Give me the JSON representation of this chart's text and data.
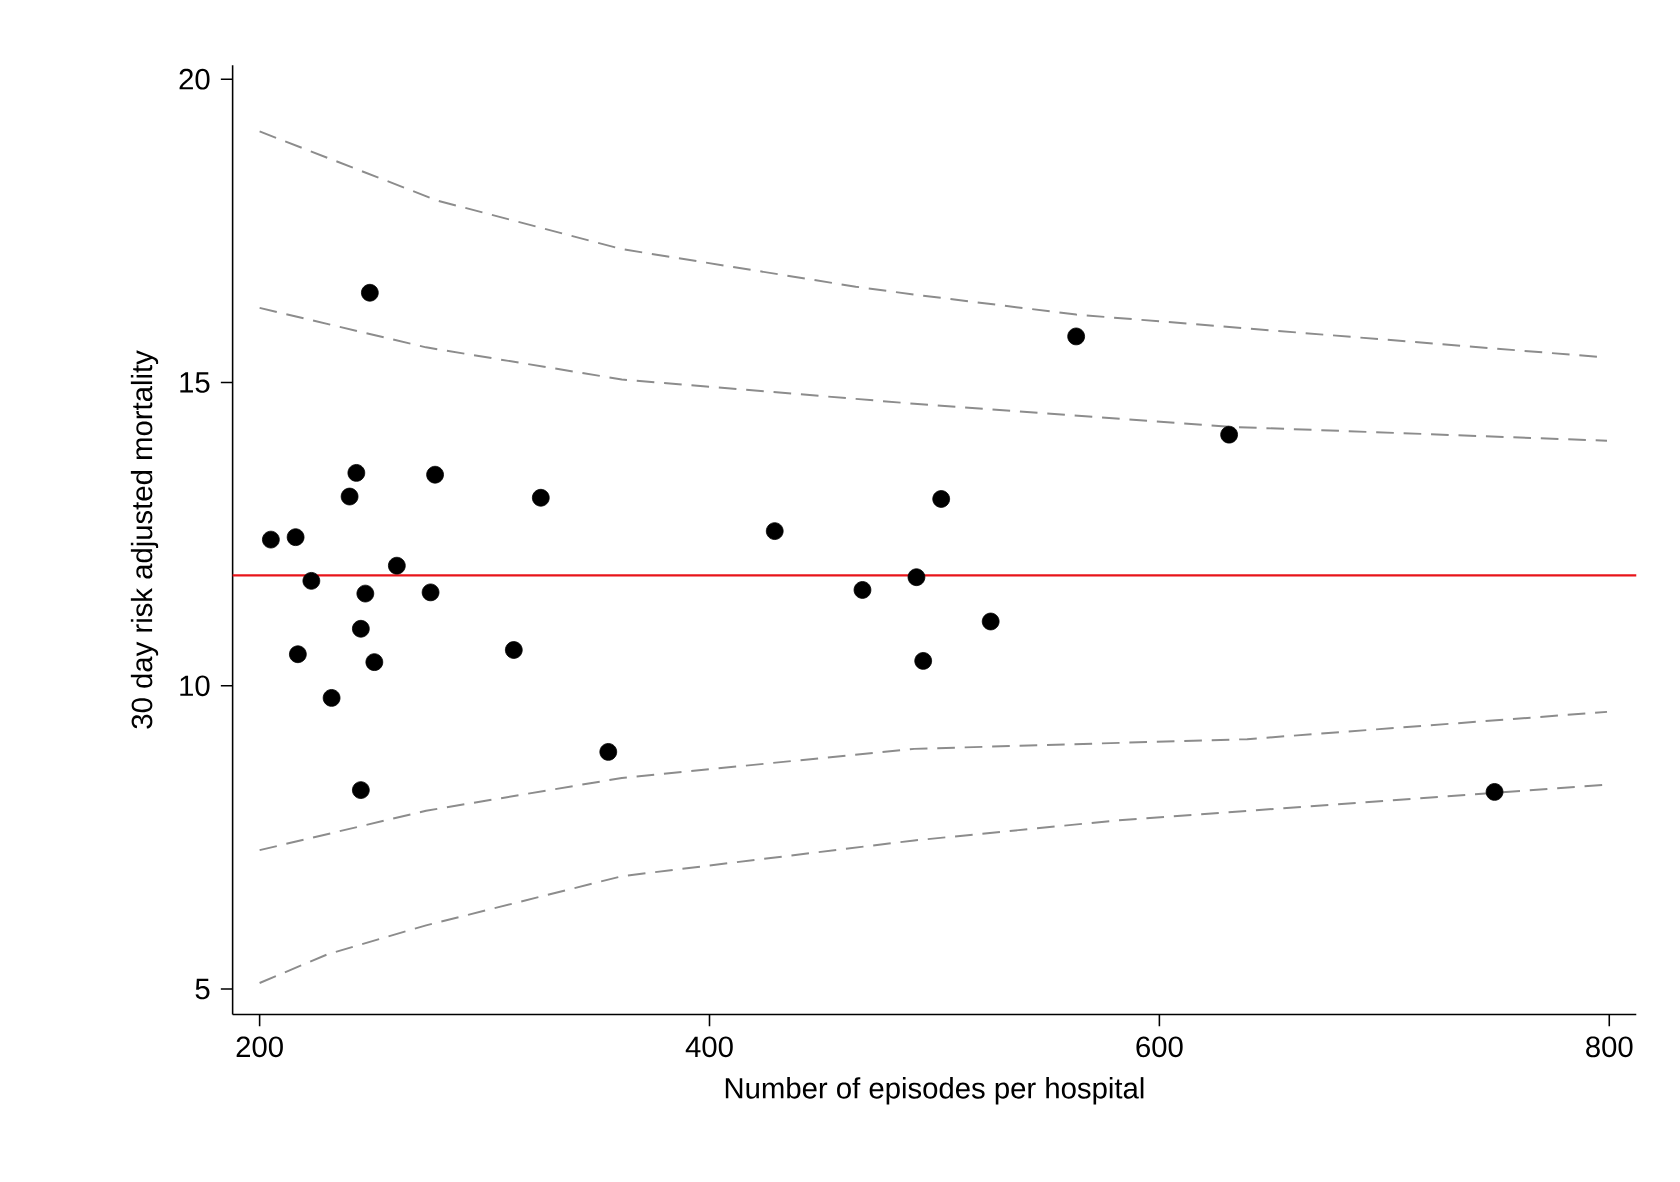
{
  "chart_data": {
    "type": "scatter",
    "xlabel": "Number of episodes per hospital",
    "ylabel": "30 day risk adjusted mortality",
    "xlim": [
      188,
      812
    ],
    "ylim": [
      4.58,
      20.23
    ],
    "xticks": [
      200,
      400,
      600,
      800
    ],
    "yticks": [
      5,
      10,
      15,
      20
    ],
    "ref_lines": [
      {
        "axis": "y",
        "value": 11.82,
        "color": "#e8141a"
      }
    ],
    "series": [
      {
        "color": "#000000",
        "marker": "circle",
        "x": [
          249,
          243,
          278,
          240,
          325,
          205,
          216,
          429,
          261,
          223,
          247,
          276,
          468,
          492,
          245,
          217,
          251,
          313,
          232,
          355,
          245,
          503,
          563,
          631,
          525,
          495,
          749
        ],
        "values": [
          16.48,
          13.51,
          13.48,
          13.12,
          13.1,
          12.41,
          12.45,
          12.55,
          11.98,
          11.73,
          11.52,
          11.54,
          11.58,
          11.79,
          10.94,
          10.52,
          10.39,
          10.59,
          9.8,
          8.91,
          8.28,
          13.08,
          15.76,
          14.14,
          11.06,
          10.41,
          8.25
        ]
      },
      {
        "type": "line",
        "color": "#8c8c8c",
        "line_style": "dashed",
        "marker": "none",
        "x": [
          200,
          279,
          361,
          465,
          491,
          563,
          796
        ],
        "values": [
          19.14,
          18.0,
          17.2,
          16.58,
          16.45,
          16.12,
          15.42
        ]
      },
      {
        "type": "line",
        "color": "#8c8c8c",
        "line_style": "dashed",
        "marker": "none",
        "x": [
          200,
          274,
          361,
          491,
          631,
          799
        ],
        "values": [
          16.23,
          15.58,
          15.05,
          14.65,
          14.27,
          14.04
        ]
      },
      {
        "type": "line",
        "color": "#8c8c8c",
        "line_style": "dashed",
        "marker": "none",
        "x": [
          200,
          274,
          361,
          491,
          639,
          799
        ],
        "values": [
          7.29,
          7.94,
          8.48,
          8.96,
          9.12,
          9.57
        ]
      },
      {
        "type": "line",
        "color": "#8c8c8c",
        "line_style": "dashed",
        "marker": "none",
        "x": [
          200,
          230,
          274,
          361,
          491,
          581,
          799
        ],
        "values": [
          5.1,
          5.57,
          6.05,
          6.86,
          7.45,
          7.78,
          8.37
        ]
      }
    ]
  }
}
